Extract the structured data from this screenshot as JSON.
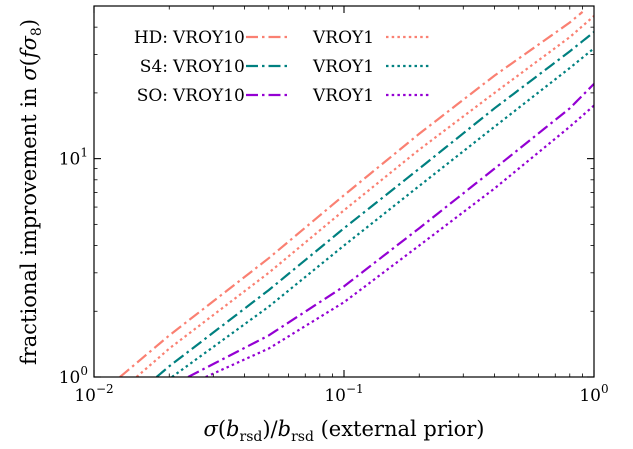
{
  "chart_data": {
    "type": "line",
    "xlabel": "σ(b_rsd)/b_rsd (external prior)",
    "ylabel": "fractional improvement in σ(fσ8)",
    "xscale": "log",
    "yscale": "log",
    "xlim": [
      0.01,
      1.0
    ],
    "ylim": [
      1.0,
      50.0
    ],
    "grid": false,
    "legend_position": "top-left",
    "x_ticks": [
      {
        "value": 0.01,
        "base": "10",
        "exp": "−2"
      },
      {
        "value": 0.1,
        "base": "10",
        "exp": "−1"
      },
      {
        "value": 1.0,
        "base": "10",
        "exp": "0"
      }
    ],
    "y_ticks": [
      {
        "value": 1,
        "base": "10",
        "exp": "0"
      },
      {
        "value": 10,
        "base": "10",
        "exp": "1"
      }
    ],
    "legend_rows": [
      {
        "prefix": "HD:",
        "label_a": "VROY10",
        "label_b": "VROY1",
        "color": "#fa8072"
      },
      {
        "prefix": "S4:",
        "label_a": "VROY10",
        "label_b": "VROY1",
        "color": "#008080"
      },
      {
        "prefix": "SO:",
        "label_a": "VROY10",
        "label_b": "VROY1",
        "color": "#9400d3"
      }
    ],
    "series": [
      {
        "experiment": "HD",
        "model": "VROY10",
        "style": "dashdot",
        "color": "#fa8072",
        "points": [
          [
            0.0127,
            1.0
          ],
          [
            0.02,
            1.55
          ],
          [
            0.05,
            3.5
          ],
          [
            0.1,
            6.8
          ],
          [
            0.2,
            13.0
          ],
          [
            0.4,
            24.0
          ],
          [
            0.8,
            42.0
          ],
          [
            0.9,
            47.0
          ]
        ]
      },
      {
        "experiment": "HD",
        "model": "VROY1",
        "style": "dotted",
        "color": "#fa8072",
        "points": [
          [
            0.0148,
            1.0
          ],
          [
            0.02,
            1.35
          ],
          [
            0.05,
            3.0
          ],
          [
            0.1,
            5.8
          ],
          [
            0.2,
            11.0
          ],
          [
            0.4,
            20.0
          ],
          [
            0.8,
            36.0
          ],
          [
            1.0,
            45.0
          ]
        ]
      },
      {
        "experiment": "S4",
        "model": "VROY10",
        "style": "dashdot",
        "color": "#008080",
        "points": [
          [
            0.0178,
            1.0
          ],
          [
            0.02,
            1.12
          ],
          [
            0.05,
            2.5
          ],
          [
            0.1,
            4.8
          ],
          [
            0.2,
            9.0
          ],
          [
            0.4,
            17.0
          ],
          [
            0.8,
            31.0
          ],
          [
            1.0,
            38.0
          ]
        ]
      },
      {
        "experiment": "S4",
        "model": "VROY1",
        "style": "dotted",
        "color": "#008080",
        "points": [
          [
            0.0205,
            1.0
          ],
          [
            0.05,
            2.1
          ],
          [
            0.1,
            4.0
          ],
          [
            0.2,
            7.5
          ],
          [
            0.4,
            14.0
          ],
          [
            0.8,
            26.0
          ],
          [
            1.0,
            32.0
          ]
        ]
      },
      {
        "experiment": "SO",
        "model": "VROY10",
        "style": "dashdot",
        "color": "#9400d3",
        "points": [
          [
            0.0238,
            1.0
          ],
          [
            0.05,
            1.55
          ],
          [
            0.1,
            2.6
          ],
          [
            0.2,
            4.8
          ],
          [
            0.4,
            9.0
          ],
          [
            0.8,
            17.0
          ],
          [
            1.0,
            22.0
          ]
        ]
      },
      {
        "experiment": "SO",
        "model": "VROY1",
        "style": "dotted",
        "color": "#9400d3",
        "points": [
          [
            0.028,
            1.0
          ],
          [
            0.05,
            1.35
          ],
          [
            0.1,
            2.2
          ],
          [
            0.2,
            4.0
          ],
          [
            0.4,
            7.3
          ],
          [
            0.8,
            14.0
          ],
          [
            1.0,
            17.5
          ]
        ]
      }
    ]
  }
}
